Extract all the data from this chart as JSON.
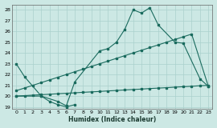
{
  "xlabel": "Humidex (Indice chaleur)",
  "background_color": "#cce8e4",
  "grid_color": "#aad0cc",
  "line_color": "#1a6b5e",
  "xlim": [
    -0.5,
    23.5
  ],
  "ylim": [
    18.8,
    28.5
  ],
  "yticks": [
    19,
    20,
    21,
    22,
    23,
    24,
    25,
    26,
    27,
    28
  ],
  "xticks": [
    0,
    1,
    2,
    3,
    4,
    5,
    6,
    7,
    8,
    9,
    10,
    11,
    12,
    13,
    14,
    15,
    16,
    17,
    18,
    19,
    20,
    21,
    22,
    23
  ],
  "series": [
    {
      "x": [
        0,
        1,
        3,
        5,
        6,
        7,
        10,
        11,
        12,
        13,
        14,
        15,
        16,
        17,
        19,
        20,
        22,
        23
      ],
      "y": [
        23.0,
        21.8,
        20.0,
        19.5,
        19.1,
        21.3,
        24.2,
        24.4,
        25.0,
        26.2,
        28.0,
        27.7,
        28.2,
        26.6,
        25.0,
        24.9,
        21.6,
        20.9
      ]
    },
    {
      "x": [
        0,
        3,
        4,
        5,
        6,
        7
      ],
      "y": [
        20.0,
        20.0,
        19.5,
        19.2,
        19.0,
        19.2
      ]
    },
    {
      "x": [
        0,
        1,
        2,
        3,
        4,
        5,
        6,
        7,
        8,
        9,
        10,
        11,
        12,
        13,
        14,
        15,
        16,
        17,
        18,
        19,
        20,
        21,
        23
      ],
      "y": [
        20.5,
        20.75,
        21.0,
        21.25,
        21.5,
        21.75,
        22.0,
        22.25,
        22.5,
        22.75,
        23.0,
        23.25,
        23.5,
        23.75,
        24.0,
        24.25,
        24.5,
        24.75,
        25.0,
        25.25,
        25.5,
        25.75,
        20.9
      ]
    },
    {
      "x": [
        0,
        1,
        2,
        3,
        4,
        5,
        6,
        7,
        8,
        9,
        10,
        11,
        12,
        13,
        14,
        15,
        16,
        17,
        18,
        19,
        20,
        21,
        22,
        23
      ],
      "y": [
        20.0,
        20.04,
        20.09,
        20.13,
        20.17,
        20.22,
        20.26,
        20.3,
        20.35,
        20.39,
        20.43,
        20.48,
        20.52,
        20.57,
        20.61,
        20.65,
        20.7,
        20.74,
        20.78,
        20.83,
        20.87,
        20.91,
        20.96,
        21.0
      ]
    }
  ]
}
